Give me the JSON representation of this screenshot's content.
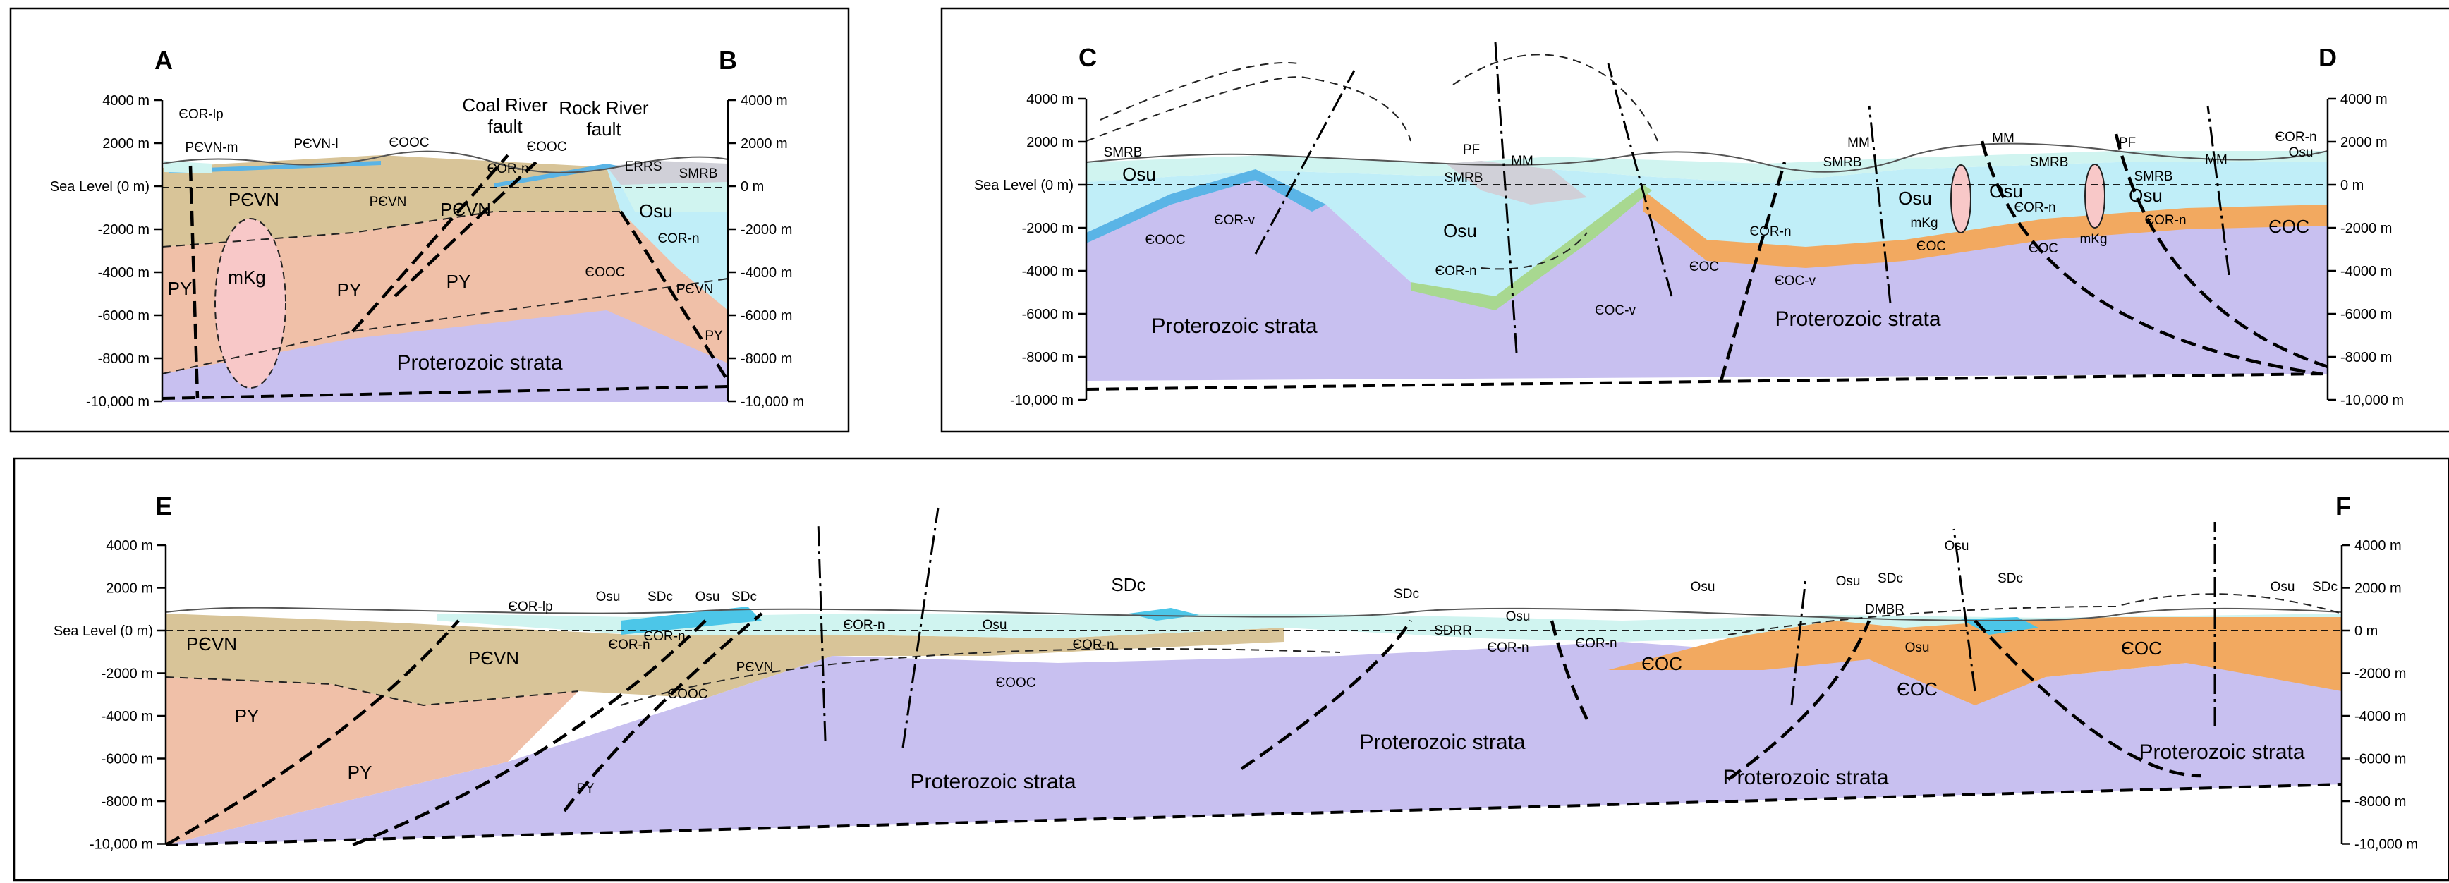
{
  "colors": {
    "proterozoic": "#c8c0f0",
    "py": "#f0c0a8",
    "pcvn": "#d8c498",
    "cooc": "#5ab4e6",
    "cor": "#c0eef8",
    "osu": "#d0f4f0",
    "coc": "#f2a960",
    "mkg": "#f8c8c8",
    "smrb": "#d0d0d8",
    "sdc": "#4cc6e8"
  },
  "axis": {
    "ticks": [
      "4000 m",
      "2000 m",
      "Sea Level (0 m)",
      "-2000 m",
      "-4000 m",
      "-6000 m",
      "-8000 m",
      "-10,000 m"
    ],
    "ticks_right": [
      "4000 m",
      "2000 m",
      "0 m",
      "-2000 m",
      "-4000 m",
      "-6000 m",
      "-8000 m",
      "-10,000 m"
    ]
  },
  "panel_ab": {
    "start": "A",
    "end": "B",
    "fault1": [
      "Coal River",
      "fault"
    ],
    "fault2": [
      "Rock River",
      "fault"
    ],
    "units": {
      "cor_lp": "ЄOR-lp",
      "pcvn_m": "PЄVN-m",
      "pcvn_l": "PЄVN-l",
      "cooc": "ЄOOC",
      "cor_n": "ЄOR-n",
      "cooc2": "ЄOOC",
      "errs": "ERRS",
      "smrb": "SMRB",
      "pcvn1": "PЄVN",
      "pcvn2": "PЄVN",
      "pcvn3": "PЄVN",
      "pcvn4": "PЄVN",
      "mkg": "mKg",
      "py1": "PY",
      "py2": "PY",
      "py3": "PY",
      "py4": "PY",
      "osu": "Osu",
      "cor_n2": "ЄOR-n",
      "cooc3": "ЄOOC",
      "strata": "Proterozoic strata"
    }
  },
  "panel_cd": {
    "start": "C",
    "end": "D",
    "units": {
      "smrb1": "SMRB",
      "osu1": "Osu",
      "cor_v": "ЄOR-v",
      "cooc": "ЄOOC",
      "pf1": "PF",
      "mm1": "MM",
      "smrb2": "SMRB",
      "osu2": "Osu",
      "cor_n1": "ЄOR-n",
      "cooc_v1": "ЄOC-v",
      "strata1": "Proterozoic strata",
      "coc1": "ЄOC",
      "cor_n2": "ЄOR-n",
      "cooc_v2": "ЄOC-v",
      "mm2": "MM",
      "smrb3": "SMRB",
      "osu3": "Osu",
      "mkg1": "mKg",
      "coc2": "ЄOC",
      "mm3": "MM",
      "smrb4": "SMRB",
      "osu4": "Osu",
      "cor_n3": "ЄOR-n",
      "mkg2": "mKg",
      "coc3": "ЄOC",
      "pf2": "PF",
      "smrb5": "SMRB",
      "mm4": "MM",
      "osu5": "Osu",
      "cor_n4": "ЄOR-n",
      "cor_n5": "ЄOR-n",
      "osu6": "Osu",
      "coc4": "ЄOC",
      "strata2": "Proterozoic strata"
    }
  },
  "panel_ef": {
    "start": "E",
    "end": "F",
    "units": {
      "pcvn1": "PЄVN",
      "py1": "PY",
      "cor_lp": "ЄOR-lp",
      "osu1": "Osu",
      "sdc1": "SDc",
      "osu2": "Osu",
      "sdc2": "SDc",
      "pcvn2": "PЄVN",
      "cor_n1": "ЄOR-n",
      "cor_n2": "ЄOR-n",
      "cooc1": "ЄOOC",
      "py2": "PY",
      "py3": "PY",
      "pcvn3": "PЄVN",
      "cor_n3": "ЄOR-n",
      "osu3": "Osu",
      "cooc2": "ЄOOC",
      "sdc3": "SDc",
      "cor_n4": "ЄOR-n",
      "sdc4": "SDc",
      "sdrr": "SDRR",
      "osu4": "Osu",
      "cor_n5": "ЄOR-n",
      "cor_n6": "ЄOR-n",
      "strata1": "Proterozoic strata",
      "strata2": "Proterozoic strata",
      "osu5": "Osu",
      "coc1": "ЄOC",
      "osu6": "Osu",
      "sdc5": "SDc",
      "dmbr": "DMBR",
      "osu7": "Osu",
      "osu8": "Osu",
      "sdc6": "SDc",
      "coc2": "ЄOC",
      "coc3": "ЄOC",
      "strata3": "Proterozoic strata",
      "osu9": "Osu",
      "sdc7": "SDc",
      "strata4": "Proterozoic strata"
    }
  }
}
